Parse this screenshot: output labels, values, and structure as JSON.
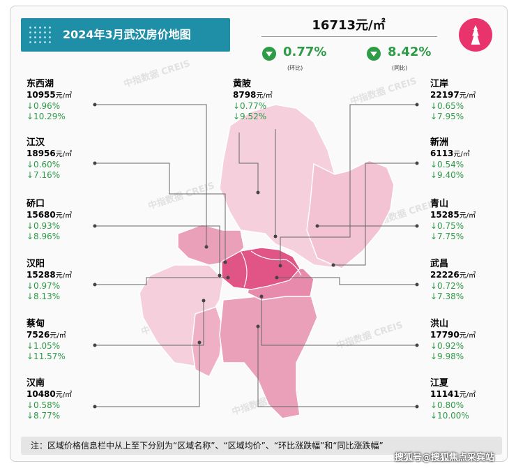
{
  "title": "2024年3月武汉房价地图",
  "citywide": {
    "price": "16713元/㎡",
    "mom_value": "0.77%",
    "mom_label": "(环比)",
    "yoy_value": "8.42%",
    "yoy_label": "(同比)"
  },
  "districts": [
    {
      "name": "东西湖",
      "price": "10955",
      "unit": "元/㎡",
      "mom": "↓0.96%",
      "yoy": "↓10.29%"
    },
    {
      "name": "江汉",
      "price": "18956",
      "unit": "元/㎡",
      "mom": "↓0.60%",
      "yoy": "↓7.16%"
    },
    {
      "name": "硚口",
      "price": "15680",
      "unit": "元/㎡",
      "mom": "↓0.93%",
      "yoy": "↓8.96%"
    },
    {
      "name": "汉阳",
      "price": "15288",
      "unit": "元/㎡",
      "mom": "↓0.97%",
      "yoy": "↓8.13%"
    },
    {
      "name": "蔡甸",
      "price": "7526",
      "unit": "元/㎡",
      "mom": "↓1.05%",
      "yoy": "↓11.57%"
    },
    {
      "name": "汉南",
      "price": "10480",
      "unit": "元/㎡",
      "mom": "↓0.58%",
      "yoy": "↓8.77%"
    },
    {
      "name": "黄陂",
      "price": "8798",
      "unit": "元/㎡",
      "mom": "↓0.77%",
      "yoy": "↓9.52%"
    },
    {
      "name": "江岸",
      "price": "22197",
      "unit": "元/㎡",
      "mom": "↓0.65%",
      "yoy": "↓7.95%"
    },
    {
      "name": "新洲",
      "price": "6113",
      "unit": "元/㎡",
      "mom": "↓0.54%",
      "yoy": "↓9.40%"
    },
    {
      "name": "青山",
      "price": "15285",
      "unit": "元/㎡",
      "mom": "↓0.75%",
      "yoy": "↓7.75%"
    },
    {
      "name": "武昌",
      "price": "22226",
      "unit": "元/㎡",
      "mom": "↓0.72%",
      "yoy": "↓7.38%"
    },
    {
      "name": "洪山",
      "price": "17790",
      "unit": "元/㎡",
      "mom": "↓0.92%",
      "yoy": "↓9.98%"
    },
    {
      "name": "江夏",
      "price": "11141",
      "unit": "元/㎡",
      "mom": "↓0.80%",
      "yoy": "↓10.00%"
    }
  ],
  "note": "注：区域价格信息栏中从上至下分别为“区域名称”、“区域均价”、“环比涨跌幅”和“同比涨跌幅”",
  "source": "搜狐号@搜狐焦点采宾站",
  "watermark": "中指数据 CREIS",
  "colors": {
    "banner": "#1f8fa8",
    "up_down": "#2e9b47",
    "logo": "#e8336d",
    "map_light": "#f6cfdc",
    "map_mid": "#eaa0b9",
    "map_dark": "#e05585"
  }
}
